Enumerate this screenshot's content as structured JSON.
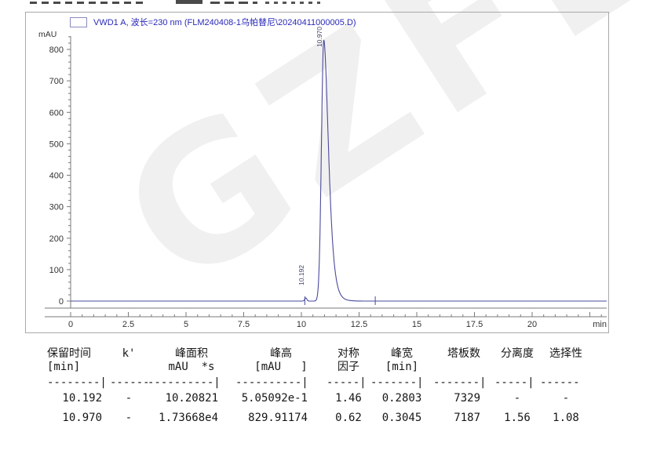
{
  "chart": {
    "legend_label": "VWD1 A, 波长=230 nm (FLM240408-1乌帕替尼\\20240411000005.D)",
    "watermark_text": "GZFL",
    "colors": {
      "curve": "#4a4a9c",
      "legend_text": "#2929b8",
      "axis": "#7a7a7a",
      "frame": "#a9a9a9",
      "tick_text": "#333333",
      "watermark": "#f0f0f0",
      "table_text": "#161616"
    }
  },
  "chart_data": {
    "type": "line",
    "title": "VWD1 A, 波长=230 nm (FLM240408-1乌帕替尼\\20240411000005.D)",
    "xlabel": "min",
    "ylabel": "mAU",
    "xlim": [
      0,
      23.3
    ],
    "ylim": [
      -40,
      870
    ],
    "x_ticks": [
      0,
      2.5,
      5,
      7.5,
      10,
      12.5,
      15,
      17.5,
      20
    ],
    "y_ticks": [
      0,
      100,
      200,
      300,
      400,
      500,
      600,
      700,
      800
    ],
    "grid": false,
    "legend_position": "top-left",
    "baseline_mau": 0,
    "peaks": [
      {
        "rt_min": 10.192,
        "height_mau": 0.505092,
        "area": 10.20821,
        "label": "10.192"
      },
      {
        "rt_min": 10.97,
        "height_mau": 829.91174,
        "area": 17366.8,
        "label": "10.970"
      }
    ],
    "integration_marks_min": [
      10.15,
      13.2
    ]
  },
  "peak_table": {
    "columns": [
      {
        "name": "保留时间",
        "unit": "[min]"
      },
      {
        "name": "k'",
        "unit": ""
      },
      {
        "name": "峰面积",
        "unit": "mAU  *s"
      },
      {
        "name": "峰高",
        "unit": "[mAU   ]"
      },
      {
        "name": "对称",
        "unit": "因子"
      },
      {
        "name": "峰宽",
        "unit": "[min]"
      },
      {
        "name": "塔板数",
        "unit": ""
      },
      {
        "name": "分离度",
        "unit": ""
      },
      {
        "name": "选择性",
        "unit": ""
      }
    ],
    "separator": [
      "--------",
      "------",
      "----------",
      "----------",
      "-----",
      "-------",
      "-------",
      "-----",
      "------"
    ],
    "rows": [
      [
        "10.192",
        "-",
        "10.20821",
        "5.05092e-1",
        "1.46",
        "0.2803",
        "7329",
        "-",
        "-"
      ],
      [
        "10.970",
        "-",
        "1.73668e4",
        "829.91174",
        "0.62",
        "0.3045",
        "7187",
        "1.56",
        "1.08"
      ]
    ]
  }
}
